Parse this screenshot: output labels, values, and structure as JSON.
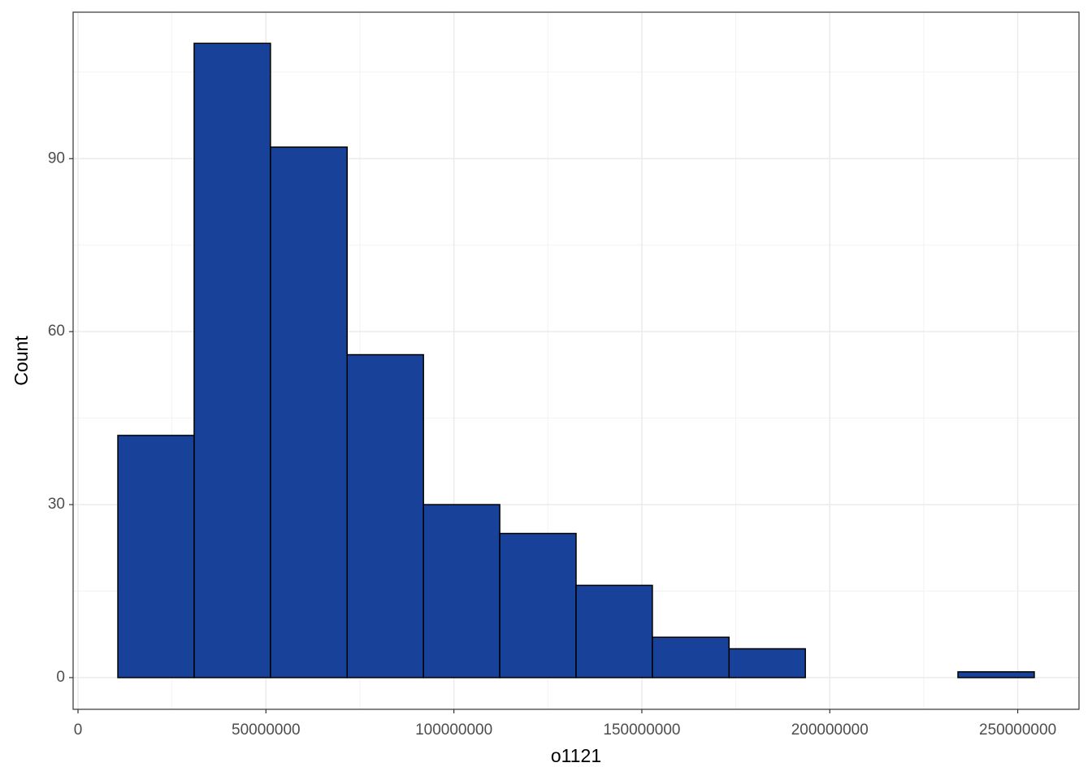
{
  "chart_data": {
    "type": "histogram",
    "x_label": "o1121",
    "y_label": "Count",
    "bins": [
      10600000,
      30900000,
      51200000,
      71600000,
      91900000,
      112200000,
      132500000,
      152800000,
      173200000,
      193500000,
      213800000,
      234100000,
      254400000
    ],
    "values": [
      42,
      110,
      92,
      56,
      30,
      25,
      16,
      7,
      5,
      0,
      0,
      1
    ],
    "color": "#18429a",
    "edge_color": "#000000",
    "xlim": [
      -1300000,
      266300000
    ],
    "ylim": [
      -5.5,
      115.4
    ],
    "xticks": [
      0,
      50000000,
      100000000,
      150000000,
      200000000,
      250000000
    ],
    "yticks": [
      0,
      30,
      60,
      90
    ],
    "xticks_minor": [
      25000000,
      75000000,
      125000000,
      175000000,
      225000000
    ],
    "yticks_minor": [
      15,
      45,
      75,
      105
    ],
    "grid": true
  }
}
